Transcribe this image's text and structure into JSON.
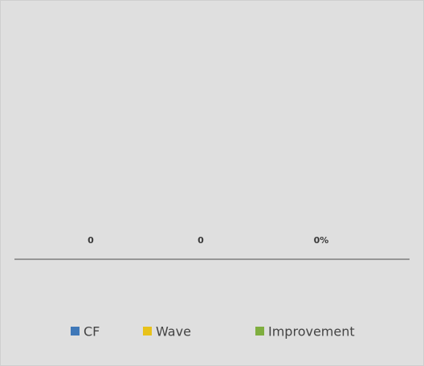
{
  "chart_data": {
    "type": "bar",
    "series": [
      {
        "name": "CF",
        "color": "#3f78b8",
        "values": [
          0
        ]
      },
      {
        "name": "Wave",
        "color": "#e8c21a",
        "values": [
          0
        ]
      },
      {
        "name": "Improvement",
        "color": "#7fae3f",
        "values": [
          0
        ],
        "value_labels": [
          "0%"
        ]
      }
    ]
  }
}
